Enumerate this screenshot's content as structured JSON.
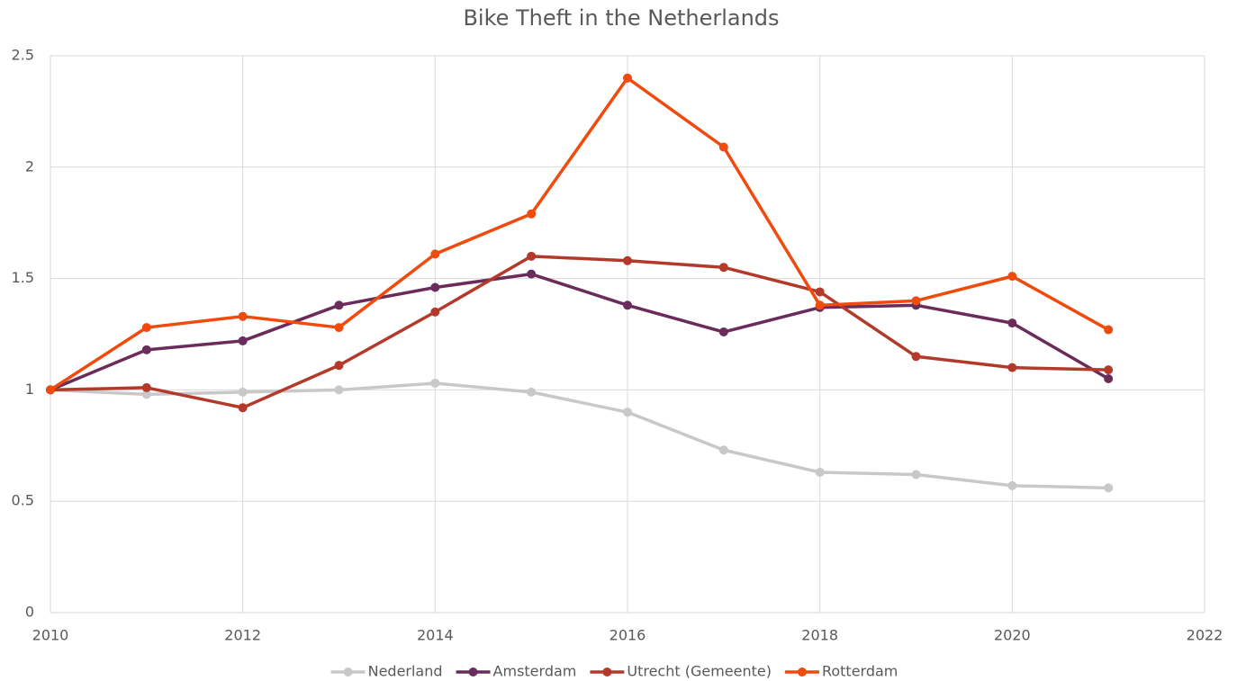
{
  "chart_data": {
    "type": "line",
    "title": "Bike Theft in the Netherlands",
    "x": [
      2010,
      2011,
      2012,
      2013,
      2014,
      2015,
      2016,
      2017,
      2018,
      2019,
      2020,
      2021
    ],
    "series": [
      {
        "name": "Nederland",
        "color": "#c8c8c8",
        "values": [
          1.0,
          0.98,
          0.99,
          1.0,
          1.03,
          0.99,
          0.9,
          0.73,
          0.63,
          0.62,
          0.57,
          0.56
        ]
      },
      {
        "name": "Amsterdam",
        "color": "#6a2c5a",
        "values": [
          1.0,
          1.18,
          1.22,
          1.38,
          1.46,
          1.52,
          1.38,
          1.26,
          1.37,
          1.38,
          1.3,
          1.05
        ]
      },
      {
        "name": "Utrecht (Gemeente)",
        "color": "#b33a2a",
        "values": [
          1.0,
          1.01,
          0.92,
          1.11,
          1.35,
          1.6,
          1.58,
          1.55,
          1.44,
          1.15,
          1.1,
          1.09
        ]
      },
      {
        "name": "Rotterdam",
        "color": "#f04a0d",
        "values": [
          1.0,
          1.28,
          1.33,
          1.28,
          1.61,
          1.79,
          2.4,
          2.09,
          1.38,
          1.4,
          1.51,
          1.27
        ]
      }
    ],
    "xlim": [
      2010,
      2022
    ],
    "xticks": [
      2010,
      2012,
      2014,
      2016,
      2018,
      2020,
      2022
    ],
    "ylim": [
      0,
      2.5
    ],
    "yticks": [
      0,
      0.5,
      1,
      1.5,
      2,
      2.5
    ],
    "grid": true,
    "legend": "bottom"
  }
}
